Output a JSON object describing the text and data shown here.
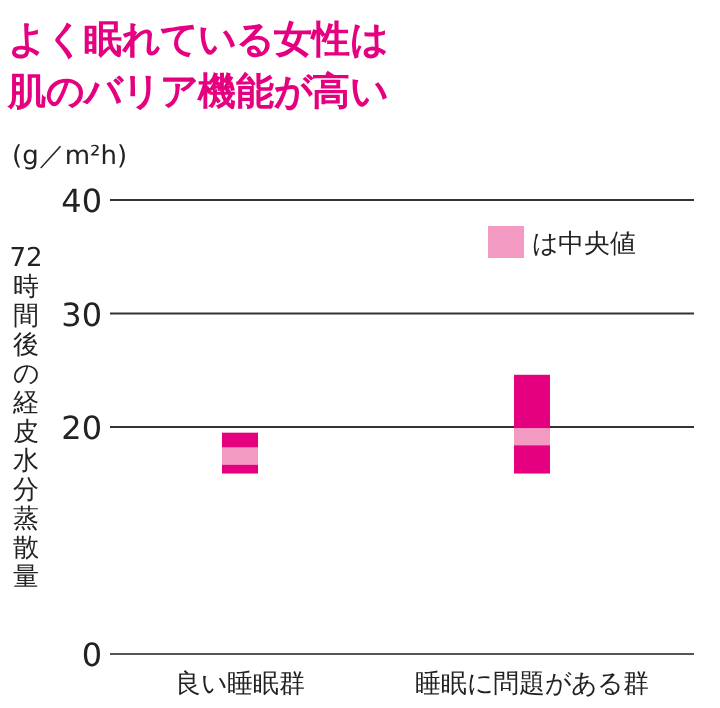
{
  "chart_data": {
    "type": "bar",
    "title": "よく眠れている女性は肌のバリア機能が高い",
    "ylabel": "72時間後の経皮水分蒸散量",
    "annotations": [
      "(g／m²h)"
    ],
    "categories": [
      "良い睡眠群",
      "睡眠に問題がある群"
    ],
    "series": [
      {
        "color": "#e5007f",
        "base": [
          15.9,
          15.9
        ],
        "values": [
          0.8,
          2.5
        ]
      },
      {
        "name": "は中央値",
        "color": "#f29ac2",
        "base": [
          16.7,
          18.4
        ],
        "values": [
          1.5,
          1.5
        ]
      },
      {
        "color": "#e5007f",
        "base": [
          18.2,
          19.9
        ],
        "values": [
          1.3,
          4.7
        ]
      }
    ],
    "ylim": [
      0,
      40
    ],
    "yticks": [
      0,
      20,
      30,
      40
    ],
    "grid": "y",
    "legend": "top right"
  }
}
